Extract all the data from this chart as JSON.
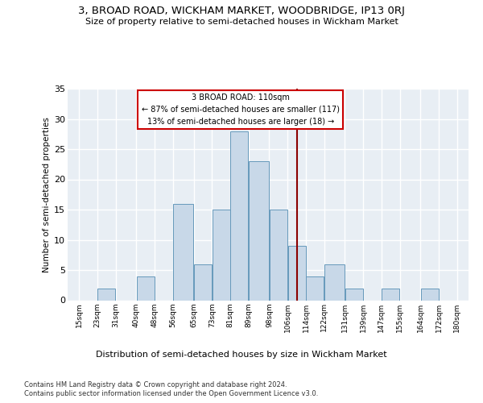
{
  "title": "3, BROAD ROAD, WICKHAM MARKET, WOODBRIDGE, IP13 0RJ",
  "subtitle": "Size of property relative to semi-detached houses in Wickham Market",
  "xlabel_bottom": "Distribution of semi-detached houses by size in Wickham Market",
  "ylabel": "Number of semi-detached properties",
  "bar_color": "#c8d8e8",
  "bar_edge_color": "#6699bb",
  "background_color": "#e8eef4",
  "grid_color": "#ffffff",
  "annotation_text": "3 BROAD ROAD: 110sqm\n← 87% of semi-detached houses are smaller (117)\n13% of semi-detached houses are larger (18) →",
  "vline_x": 110,
  "bins": [
    15,
    23,
    31,
    40,
    48,
    56,
    65,
    73,
    81,
    89,
    98,
    106,
    114,
    122,
    131,
    139,
    147,
    155,
    164,
    172,
    180
  ],
  "bin_labels": [
    "15sqm",
    "23sqm",
    "31sqm",
    "40sqm",
    "48sqm",
    "56sqm",
    "65sqm",
    "73sqm",
    "81sqm",
    "89sqm",
    "98sqm",
    "106sqm",
    "114sqm",
    "122sqm",
    "131sqm",
    "139sqm",
    "147sqm",
    "155sqm",
    "164sqm",
    "172sqm",
    "180sqm"
  ],
  "counts": [
    0,
    2,
    0,
    4,
    0,
    16,
    6,
    15,
    28,
    23,
    15,
    9,
    4,
    6,
    2,
    0,
    2,
    0,
    2,
    0
  ],
  "yticks": [
    0,
    5,
    10,
    15,
    20,
    25,
    30,
    35
  ],
  "ylim": [
    0,
    35
  ],
  "footnote1": "Contains HM Land Registry data © Crown copyright and database right 2024.",
  "footnote2": "Contains public sector information licensed under the Open Government Licence v3.0."
}
